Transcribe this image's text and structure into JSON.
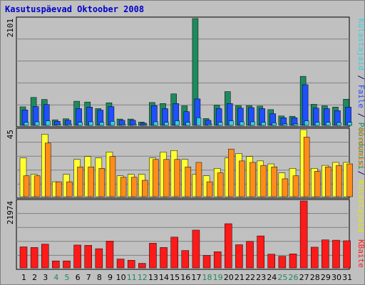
{
  "title": "Kasutuspäevad Oktoober 2008",
  "chart_data": [
    {
      "type": "bar",
      "name": "panel-visits",
      "categories": [
        "1",
        "2",
        "3",
        "4",
        "5",
        "6",
        "7",
        "8",
        "9",
        "10",
        "11",
        "12",
        "13",
        "14",
        "15",
        "16",
        "17",
        "18",
        "19",
        "20",
        "21",
        "22",
        "23",
        "24",
        "25",
        "26",
        "27",
        "28",
        "29",
        "30",
        "31"
      ],
      "ymax_label": "2101",
      "ymax": 2101,
      "series": [
        {
          "name": "Pöördumisi",
          "color": "#1e8a5e",
          "values": [
            365,
            550,
            510,
            110,
            130,
            475,
            460,
            330,
            445,
            125,
            125,
            65,
            450,
            430,
            620,
            385,
            2101,
            135,
            395,
            665,
            390,
            390,
            380,
            310,
            185,
            180,
            965,
            415,
            385,
            360,
            515
          ]
        },
        {
          "name": "Faile",
          "color": "#1f4fff",
          "values": [
            305,
            370,
            410,
            80,
            100,
            330,
            360,
            300,
            370,
            100,
            100,
            45,
            390,
            330,
            430,
            270,
            520,
            100,
            330,
            430,
            340,
            350,
            330,
            230,
            150,
            150,
            800,
            340,
            330,
            290,
            360
          ]
        },
        {
          "name": "Külastajaid",
          "color": "#33d0e0",
          "values": [
            60,
            70,
            90,
            20,
            25,
            60,
            70,
            60,
            80,
            20,
            20,
            15,
            70,
            60,
            90,
            60,
            150,
            25,
            60,
            90,
            70,
            70,
            60,
            50,
            30,
            30,
            90,
            60,
            60,
            55,
            60
          ]
        }
      ]
    },
    {
      "type": "bar",
      "name": "panel-visitors",
      "categories": [
        "1",
        "2",
        "3",
        "4",
        "5",
        "6",
        "7",
        "8",
        "9",
        "10",
        "11",
        "12",
        "13",
        "14",
        "15",
        "16",
        "17",
        "18",
        "19",
        "20",
        "21",
        "22",
        "23",
        "24",
        "25",
        "26",
        "27",
        "28",
        "29",
        "30",
        "31"
      ],
      "ymax_label": "45",
      "ymax": 45,
      "series": [
        {
          "name": "Külastajaid",
          "color": "#ffff33",
          "values": [
            26,
            15,
            42,
            10,
            15,
            25,
            27,
            26,
            30,
            14,
            15,
            15,
            26,
            30,
            31,
            25,
            15,
            14,
            19,
            26,
            29,
            27,
            24,
            22,
            16,
            19,
            45,
            19,
            21,
            23,
            23
          ]
        },
        {
          "name": "Arvuteid",
          "color": "#ff8c1a",
          "values": [
            14,
            14,
            36,
            10,
            10,
            20,
            20,
            19,
            27,
            13,
            13,
            11,
            25,
            25,
            25,
            20,
            23,
            10,
            16,
            32,
            24,
            23,
            21,
            20,
            12,
            14,
            40,
            17,
            20,
            21,
            22
          ]
        }
      ]
    },
    {
      "type": "bar",
      "name": "panel-kbytes",
      "categories": [
        "1",
        "2",
        "3",
        "4",
        "5",
        "6",
        "7",
        "8",
        "9",
        "10",
        "11",
        "12",
        "13",
        "14",
        "15",
        "16",
        "17",
        "18",
        "19",
        "20",
        "21",
        "22",
        "23",
        "24",
        "25",
        "26",
        "27",
        "28",
        "29",
        "30",
        "31"
      ],
      "ymax_label": "21974",
      "ymax": 21974,
      "series": [
        {
          "name": "KBaite",
          "color": "#ff1a1a",
          "values": [
            6900,
            6700,
            7800,
            2300,
            2300,
            7500,
            7400,
            6300,
            8800,
            2900,
            2500,
            1500,
            8100,
            6700,
            10100,
            5700,
            12400,
            4100,
            5300,
            14500,
            7600,
            8700,
            10500,
            4500,
            3800,
            4600,
            21974,
            6800,
            9200,
            9100,
            8900
          ]
        }
      ]
    }
  ],
  "legend": {
    "top": [
      {
        "text": "Külastajaid",
        "color": "#33d0e0"
      },
      {
        "text": " / ",
        "color": "#000080"
      },
      {
        "text": "Faile",
        "color": "#1f4fff"
      },
      {
        "text": " / ",
        "color": "#000080"
      },
      {
        "text": "Pöördumisi",
        "color": "#1e8a5e"
      }
    ],
    "middle": [
      {
        "text": "Arvuteid",
        "color": "#ff8c1a"
      },
      {
        "text": " / ",
        "color": "#000080"
      },
      {
        "text": "Külastajaid",
        "color": "#e6e600"
      }
    ],
    "bottom": [
      {
        "text": "KBaite",
        "color": "#ff1a1a"
      }
    ]
  },
  "weekend_days": [
    "4",
    "5",
    "11",
    "12",
    "18",
    "19",
    "25",
    "26"
  ],
  "colors": {
    "background": "#c0c0c0",
    "weekday_label": "#000000",
    "weekend_label": "#1e8a5e"
  }
}
